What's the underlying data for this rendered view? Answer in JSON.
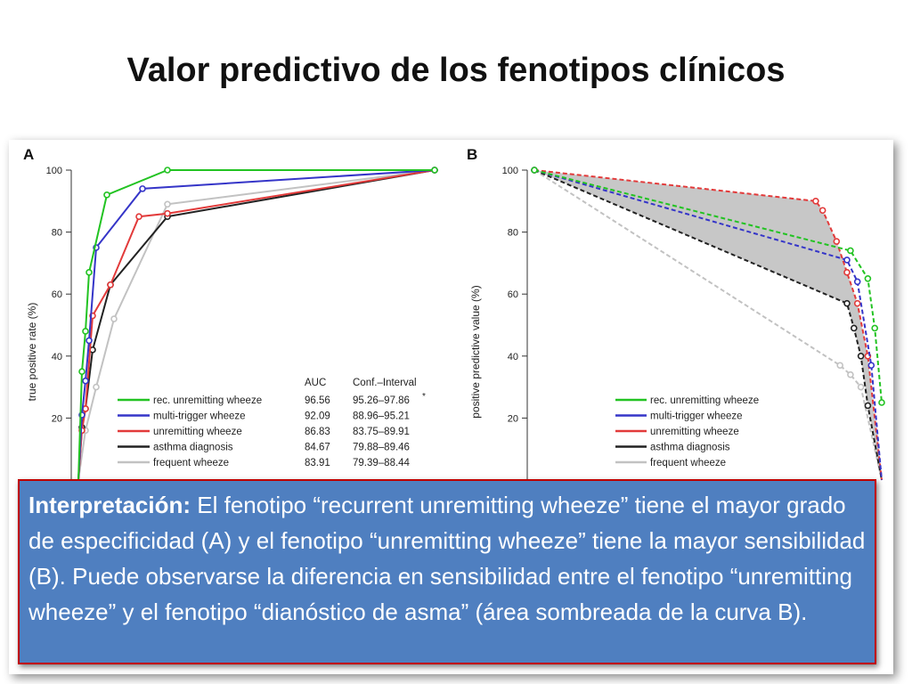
{
  "slide": {
    "title": "Valor predictivo de los fenotipos clínicos"
  },
  "interpretation": {
    "label": "Interpretación:",
    "text": " El fenotipo “recurrent unremitting wheeze” tiene el mayor grado de especificidad (A) y el fenotipo “unremitting wheeze” tiene la mayor sensibilidad (B).  Puede observarse la diferencia en sensibilidad entre el fenotipo “unremitting wheeze” y el fenotipo “dianóstico de asma” (área sombreada de la curva B)."
  },
  "colors": {
    "rec_unremitting": "#22c322",
    "multi_trigger": "#3535c8",
    "unremitting": "#e23a3a",
    "asthma_diagnosis": "#222222",
    "frequent": "#c2c2c2",
    "shade": "#bdbdbd"
  },
  "chart_data": [
    {
      "panel": "A",
      "type": "line",
      "ylabel": "true positive rate (%)",
      "ylim": [
        0,
        100
      ],
      "xlim": [
        0,
        100
      ],
      "yticks": [
        "20",
        "40",
        "60",
        "80",
        "100"
      ],
      "legend_header": {
        "auc": "AUC",
        "ci": "Conf.–Interval"
      },
      "legend_note": "*",
      "series": [
        {
          "key": "rec_unremitting",
          "name": "rec. unremitting wheeze",
          "auc": "96.56",
          "ci": "95.26–97.86",
          "x": [
            0,
            1,
            2,
            3,
            8,
            25,
            100
          ],
          "y": [
            0,
            35,
            48,
            67,
            92,
            100,
            100
          ]
        },
        {
          "key": "multi_trigger",
          "name": "multi-trigger wheeze",
          "auc": "92.09",
          "ci": "88.96–95.21",
          "x": [
            0,
            1,
            2,
            3,
            5,
            18,
            100
          ],
          "y": [
            0,
            21,
            32,
            45,
            75,
            94,
            100
          ]
        },
        {
          "key": "unremitting",
          "name": "unremitting wheeze",
          "auc": "86.83",
          "ci": "83.75–89.91",
          "x": [
            0,
            1,
            2,
            4,
            9,
            17,
            25,
            100
          ],
          "y": [
            0,
            16,
            23,
            53,
            63,
            85,
            86,
            100
          ]
        },
        {
          "key": "asthma_diagnosis",
          "name": "asthma diagnosis",
          "auc": "84.67",
          "ci": "79.88–89.46",
          "x": [
            0,
            1,
            2,
            4,
            9,
            25,
            100
          ],
          "y": [
            0,
            17,
            23,
            42,
            63,
            85,
            100
          ]
        },
        {
          "key": "frequent",
          "name": "frequent wheeze",
          "auc": "83.91",
          "ci": "79.39–88.44",
          "x": [
            0,
            2,
            5,
            10,
            25,
            100
          ],
          "y": [
            0,
            16,
            30,
            52,
            89,
            100
          ]
        }
      ]
    },
    {
      "panel": "B",
      "type": "line",
      "ylabel": "positive predictive value (%)",
      "ylim": [
        0,
        100
      ],
      "xlim": [
        0,
        100
      ],
      "yticks": [
        "20",
        "40",
        "60",
        "80",
        "100"
      ],
      "shaded_between": [
        "unremitting",
        "asthma_diagnosis"
      ],
      "series": [
        {
          "key": "rec_unremitting",
          "name": "rec. unremitting wheeze",
          "x": [
            0,
            91,
            96,
            98,
            100
          ],
          "y": [
            100,
            74,
            65,
            49,
            25
          ]
        },
        {
          "key": "multi_trigger",
          "name": "multi-trigger wheeze",
          "x": [
            0,
            90,
            93,
            97,
            100
          ],
          "y": [
            100,
            71,
            64,
            37,
            0
          ]
        },
        {
          "key": "unremitting",
          "name": "unremitting wheeze",
          "x": [
            0,
            81,
            83,
            87,
            90,
            93,
            96,
            100
          ],
          "y": [
            100,
            90,
            87,
            77,
            67,
            57,
            40,
            0
          ]
        },
        {
          "key": "asthma_diagnosis",
          "name": "asthma diagnosis",
          "x": [
            0,
            90,
            92,
            94,
            96,
            100
          ],
          "y": [
            100,
            57,
            49,
            40,
            24,
            0
          ]
        },
        {
          "key": "frequent",
          "name": "frequent wheeze",
          "x": [
            0,
            88,
            91,
            94,
            100
          ],
          "y": [
            100,
            37,
            34,
            30,
            0
          ]
        }
      ]
    }
  ]
}
